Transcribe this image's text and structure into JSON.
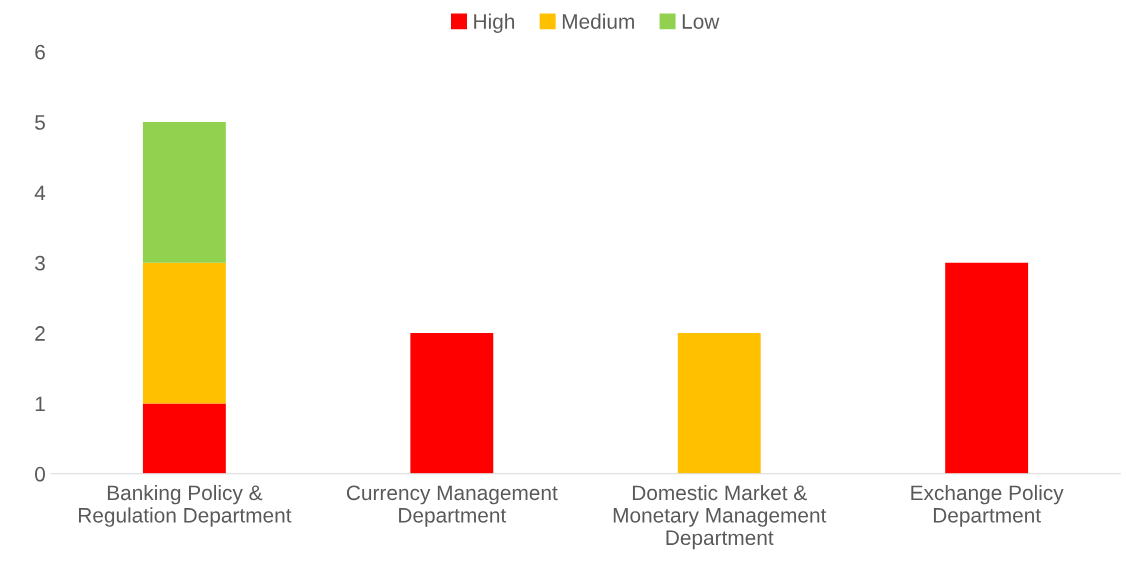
{
  "chart_data": {
    "type": "bar",
    "stacked": true,
    "categories": [
      "Banking Policy &\nRegulation Department",
      "Currency Management\nDepartment",
      "Domestic Market &\nMonetary Management\nDepartment",
      "Exchange Policy\nDepartment"
    ],
    "series": [
      {
        "name": "High",
        "color": "#ff0000",
        "values": [
          1,
          2,
          null,
          3
        ]
      },
      {
        "name": "Medium",
        "color": "#ffc000",
        "values": [
          2,
          null,
          2,
          null
        ]
      },
      {
        "name": "Low",
        "color": "#92d050",
        "values": [
          2,
          null,
          null,
          null
        ]
      }
    ],
    "ylim": [
      0,
      6
    ],
    "yticks": [
      0,
      1,
      2,
      3,
      4,
      5,
      6
    ],
    "grid": false,
    "legend": "top"
  }
}
